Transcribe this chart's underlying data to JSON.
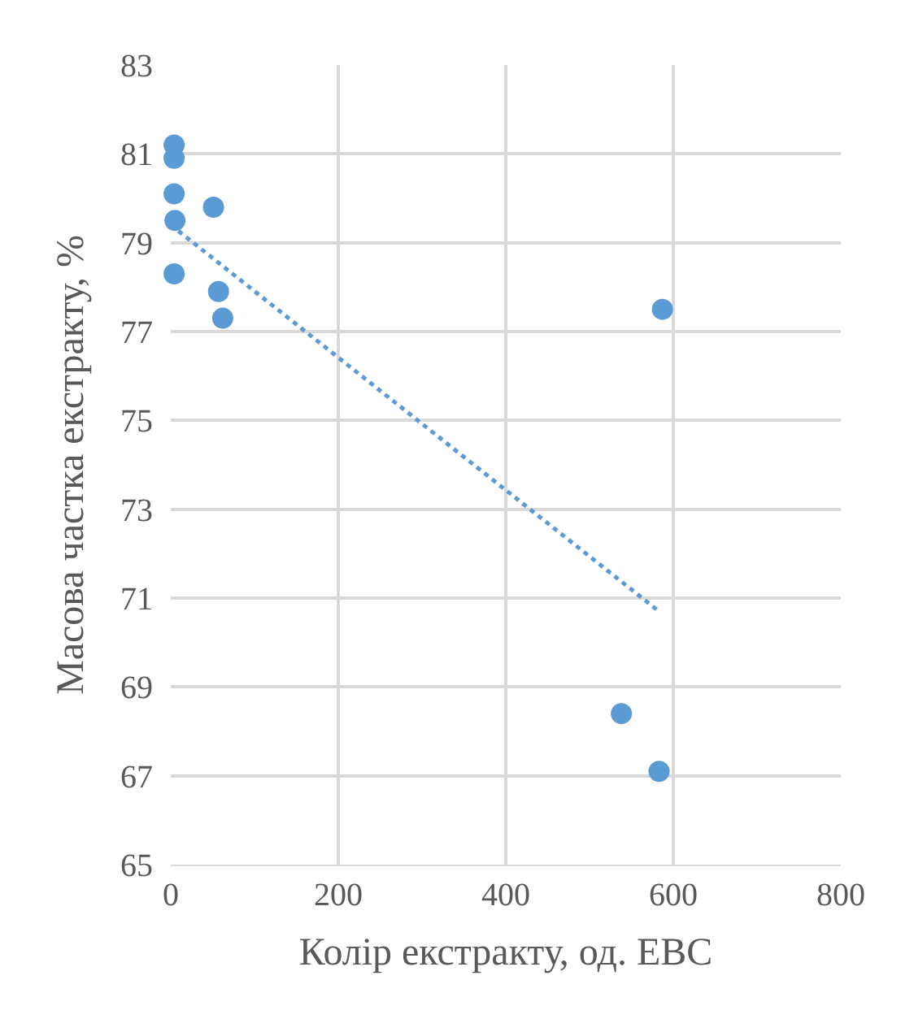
{
  "chart_data": {
    "type": "scatter",
    "xlabel": "Колір екстракту, од. ЕВС",
    "ylabel": "Масова частка екстракту, %",
    "xlim": [
      0,
      800
    ],
    "xticks": [
      0,
      200,
      400,
      600,
      800
    ],
    "ylim": [
      65,
      83
    ],
    "yticks": [
      65,
      67,
      69,
      71,
      73,
      75,
      77,
      79,
      81,
      83
    ],
    "grid": true,
    "marker": "circle",
    "series": [
      {
        "color": "#5b9bd5",
        "x": [
          4,
          4,
          4,
          5,
          4,
          51,
          57,
          62,
          587,
          538,
          583
        ],
        "values": [
          81.2,
          80.9,
          80.1,
          79.5,
          78.3,
          79.8,
          77.9,
          77.3,
          77.5,
          68.4,
          67.1
        ]
      },
      {
        "type": "line",
        "line_style": "dotted",
        "marker": "none",
        "color": "#5b9bd5",
        "x": [
          0,
          583
        ],
        "values": [
          79.4,
          70.7
        ]
      }
    ]
  }
}
